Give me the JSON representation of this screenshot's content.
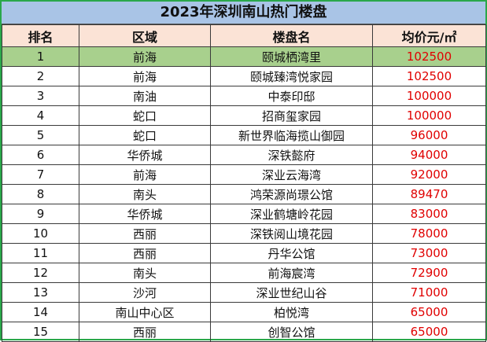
{
  "title": "2023年深圳南山热门楼盘",
  "headers": [
    "排名",
    "区域",
    "楼盘名",
    "均价元/㎡"
  ],
  "rows": [
    {
      "rank": "1",
      "area": "前海",
      "name": "颐城栖湾里",
      "price": "102500"
    },
    {
      "rank": "2",
      "area": "前海",
      "name": "颐城臻湾悦家园",
      "price": "102500"
    },
    {
      "rank": "3",
      "area": "南油",
      "name": "中泰印邸",
      "price": "100000"
    },
    {
      "rank": "4",
      "area": "蛇口",
      "name": "招商玺家园",
      "price": "100000"
    },
    {
      "rank": "5",
      "area": "蛇口",
      "name": "新世界临海揽山御园",
      "price": "96000"
    },
    {
      "rank": "6",
      "area": "华侨城",
      "name": "深铁懿府",
      "price": "94000"
    },
    {
      "rank": "7",
      "area": "前海",
      "name": "深业云海湾",
      "price": "92000"
    },
    {
      "rank": "8",
      "area": "南头",
      "name": "鸿荣源尚璟公馆",
      "price": "89470"
    },
    {
      "rank": "9",
      "area": "华侨城",
      "name": "深业鹤塘岭花园",
      "price": "83000"
    },
    {
      "rank": "10",
      "area": "西丽",
      "name": "深铁阅山境花园",
      "price": "78000"
    },
    {
      "rank": "11",
      "area": "西丽",
      "name": "丹华公馆",
      "price": "73000"
    },
    {
      "rank": "12",
      "area": "南头",
      "name": "前海宸湾",
      "price": "72900"
    },
    {
      "rank": "13",
      "area": "沙河",
      "name": "深业世纪山谷",
      "price": "71000"
    },
    {
      "rank": "14",
      "area": "南山中心区",
      "name": "柏悦湾",
      "price": "65000"
    },
    {
      "rank": "15",
      "area": "西丽",
      "name": "创智公馆",
      "price": "65000"
    }
  ],
  "colors": {
    "title_bg": "#a9c4e6",
    "header_bg": "#fbe3d6",
    "highlight_bg": "#a8d08d",
    "price_color": "#e00000",
    "border": "#2aa84a"
  }
}
